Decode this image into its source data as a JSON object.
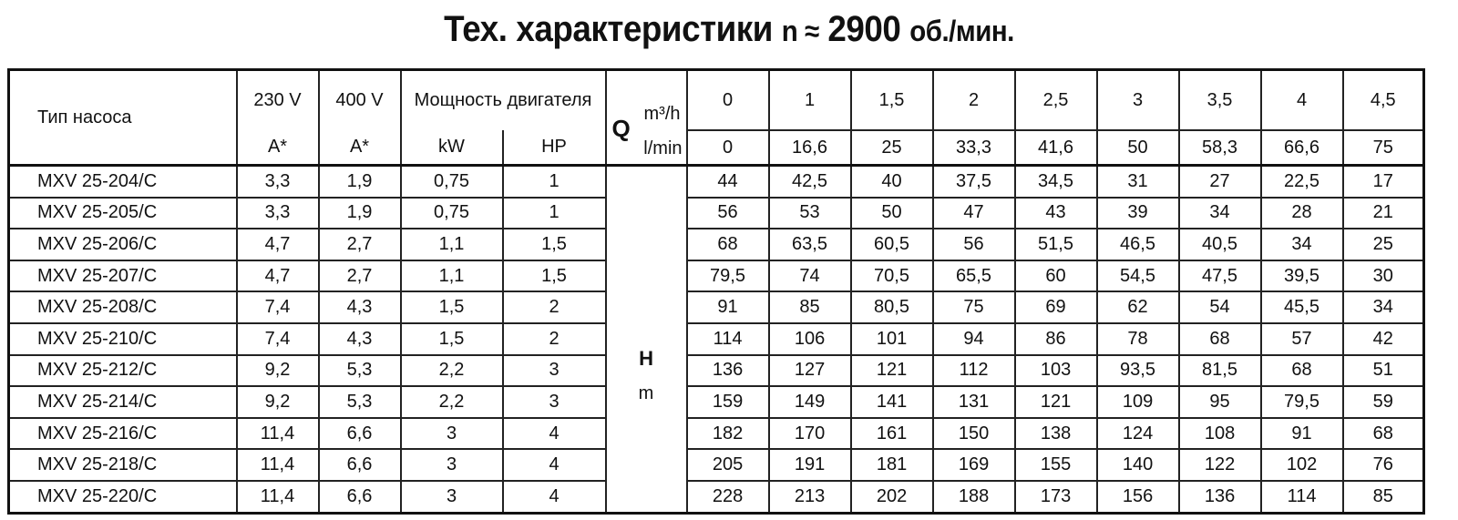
{
  "title": {
    "main": "Тех. характеристики",
    "n": "n ≈",
    "speed": "2900",
    "unit": "об./мин."
  },
  "header": {
    "pump_type": "Тип насоса",
    "v230": "230 V",
    "v400": "400 V",
    "a230": "A*",
    "a400": "A*",
    "power": "Мощность двигателя",
    "kw": "kW",
    "hp": "HP",
    "q": "Q",
    "q_unit_m3h": "m³/h",
    "q_unit_lmin": "l/min",
    "h": "H",
    "h_unit": "m"
  },
  "flow_m3h": [
    "0",
    "1",
    "1,5",
    "2",
    "2,5",
    "3",
    "3,5",
    "4",
    "4,5"
  ],
  "flow_lmin": [
    "0",
    "16,6",
    "25",
    "33,3",
    "41,6",
    "50",
    "58,3",
    "66,6",
    "75"
  ],
  "rows": [
    {
      "model": "MXV 25-204/C",
      "a230": "3,3",
      "a400": "1,9",
      "kw": "0,75",
      "hp": "1",
      "h": [
        "44",
        "42,5",
        "40",
        "37,5",
        "34,5",
        "31",
        "27",
        "22,5",
        "17"
      ]
    },
    {
      "model": "MXV 25-205/C",
      "a230": "3,3",
      "a400": "1,9",
      "kw": "0,75",
      "hp": "1",
      "h": [
        "56",
        "53",
        "50",
        "47",
        "43",
        "39",
        "34",
        "28",
        "21"
      ]
    },
    {
      "model": "MXV 25-206/C",
      "a230": "4,7",
      "a400": "2,7",
      "kw": "1,1",
      "hp": "1,5",
      "h": [
        "68",
        "63,5",
        "60,5",
        "56",
        "51,5",
        "46,5",
        "40,5",
        "34",
        "25"
      ]
    },
    {
      "model": "MXV 25-207/C",
      "a230": "4,7",
      "a400": "2,7",
      "kw": "1,1",
      "hp": "1,5",
      "h": [
        "79,5",
        "74",
        "70,5",
        "65,5",
        "60",
        "54,5",
        "47,5",
        "39,5",
        "30"
      ]
    },
    {
      "model": "MXV 25-208/C",
      "a230": "7,4",
      "a400": "4,3",
      "kw": "1,5",
      "hp": "2",
      "h": [
        "91",
        "85",
        "80,5",
        "75",
        "69",
        "62",
        "54",
        "45,5",
        "34"
      ]
    },
    {
      "model": "MXV 25-210/C",
      "a230": "7,4",
      "a400": "4,3",
      "kw": "1,5",
      "hp": "2",
      "h": [
        "114",
        "106",
        "101",
        "94",
        "86",
        "78",
        "68",
        "57",
        "42"
      ]
    },
    {
      "model": "MXV 25-212/C",
      "a230": "9,2",
      "a400": "5,3",
      "kw": "2,2",
      "hp": "3",
      "h": [
        "136",
        "127",
        "121",
        "112",
        "103",
        "93,5",
        "81,5",
        "68",
        "51"
      ]
    },
    {
      "model": "MXV 25-214/C",
      "a230": "9,2",
      "a400": "5,3",
      "kw": "2,2",
      "hp": "3",
      "h": [
        "159",
        "149",
        "141",
        "131",
        "121",
        "109",
        "95",
        "79,5",
        "59"
      ]
    },
    {
      "model": "MXV 25-216/C",
      "a230": "11,4",
      "a400": "6,6",
      "kw": "3",
      "hp": "4",
      "h": [
        "182",
        "170",
        "161",
        "150",
        "138",
        "124",
        "108",
        "91",
        "68"
      ]
    },
    {
      "model": "MXV 25-218/C",
      "a230": "11,4",
      "a400": "6,6",
      "kw": "3",
      "hp": "4",
      "h": [
        "205",
        "191",
        "181",
        "169",
        "155",
        "140",
        "122",
        "102",
        "76"
      ]
    },
    {
      "model": "MXV 25-220/C",
      "a230": "11,4",
      "a400": "6,6",
      "kw": "3",
      "hp": "4",
      "h": [
        "228",
        "213",
        "202",
        "188",
        "173",
        "156",
        "136",
        "114",
        "85"
      ]
    }
  ]
}
